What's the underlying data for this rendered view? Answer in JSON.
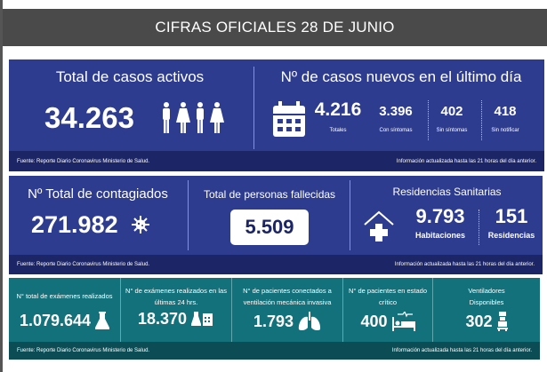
{
  "header": {
    "title": "CIFRAS OFICIALES 28 DE JUNIO"
  },
  "activos": {
    "title": "Total de casos activos",
    "value": "34.263"
  },
  "nuevos": {
    "title": "Nº de casos nuevos en el último día",
    "totales": {
      "value": "4.216",
      "label": "Totales"
    },
    "con_sintomas": {
      "value": "3.396",
      "label": "Con síntomas"
    },
    "sin_sintomas": {
      "value": "402",
      "label": "Sin síntomas"
    },
    "sin_notificar": {
      "value": "418",
      "label": "Sin notificar"
    }
  },
  "contagiados": {
    "title": "Nº Total de contagiados",
    "value": "271.982"
  },
  "fallecidas": {
    "title": "Total de personas fallecidas",
    "value": "5.509"
  },
  "residencias": {
    "title": "Residencias Sanitarias",
    "habitaciones": {
      "value": "9.793",
      "label": "Habitaciones"
    },
    "residencias": {
      "value": "151",
      "label": "Residencias"
    }
  },
  "examenes_total": {
    "title": "N° total de exámenes realizados",
    "value": "1.079.644"
  },
  "examenes_24": {
    "title": "N° de exámenes realizados en las últimas 24 hrs.",
    "value": "18.370"
  },
  "ventilacion": {
    "title": "N° de pacientes conectados a ventilación mecánica invasiva",
    "value": "1.793"
  },
  "critico": {
    "title": "N° de pacientes  en estado crítico",
    "value": "400"
  },
  "ventiladores": {
    "title": "Ventiladores Disponibles",
    "value": "302"
  },
  "footer": {
    "source": "Fuente: Reporte Diario Coronavirus Ministerio de Salud.",
    "updated": "Información actualizada hasta las 21 horas  del día anterior."
  },
  "colors": {
    "blue": "#2e3c8f",
    "teal": "#13717b",
    "header": "#4a4a4a"
  }
}
